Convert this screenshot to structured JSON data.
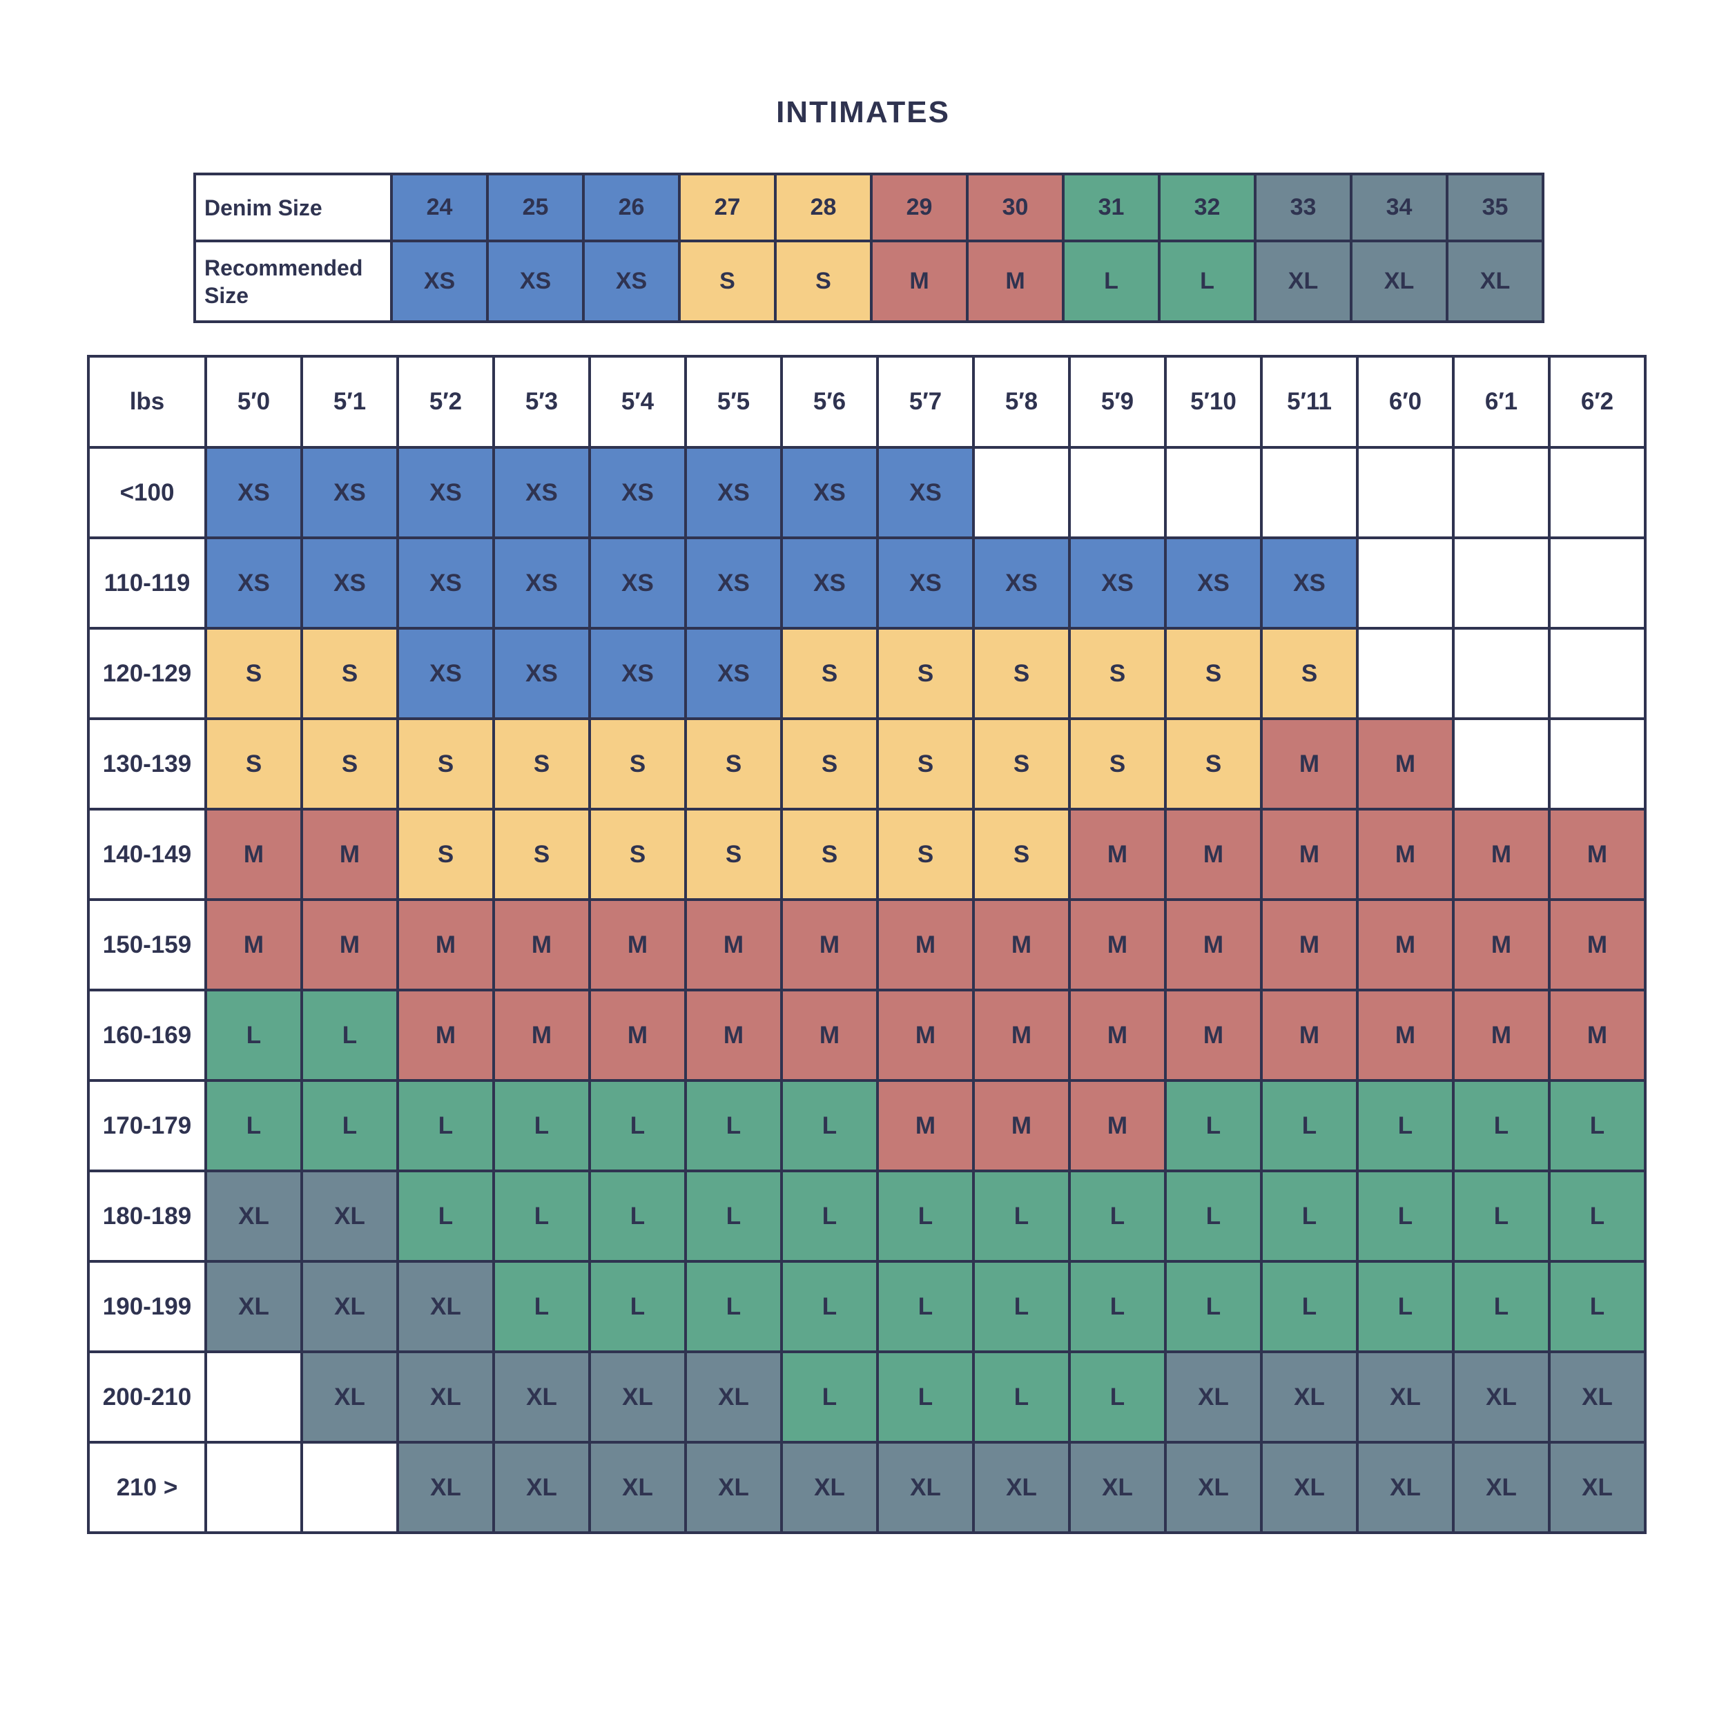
{
  "title": "INTIMATES",
  "colors": {
    "XS": "#5b86c6",
    "S": "#f6cf87",
    "M": "#c57a76",
    "L": "#5fa78c",
    "XL": "#6f8794",
    "empty": "#ffffff",
    "border": "#2f3350",
    "text": "#2f3350"
  },
  "denim_table": {
    "row_labels": [
      "Denim Size",
      "Recommended Size"
    ],
    "sizes": [
      "24",
      "25",
      "26",
      "27",
      "28",
      "29",
      "30",
      "31",
      "32",
      "33",
      "34",
      "35"
    ],
    "recommended": [
      "XS",
      "XS",
      "XS",
      "S",
      "S",
      "M",
      "M",
      "L",
      "L",
      "XL",
      "XL",
      "XL"
    ]
  },
  "chart_data": {
    "type": "table",
    "corner_label": "lbs",
    "columns": [
      "5′0",
      "5′1",
      "5′2",
      "5′3",
      "5′4",
      "5′5",
      "5′6",
      "5′7",
      "5′8",
      "5′9",
      "5′10",
      "5′11",
      "6′0",
      "6′1",
      "6′2"
    ],
    "rows": [
      {
        "label": "<100",
        "cells": [
          "XS",
          "XS",
          "XS",
          "XS",
          "XS",
          "XS",
          "XS",
          "XS",
          "",
          "",
          "",
          "",
          "",
          "",
          ""
        ]
      },
      {
        "label": "110-119",
        "cells": [
          "XS",
          "XS",
          "XS",
          "XS",
          "XS",
          "XS",
          "XS",
          "XS",
          "XS",
          "XS",
          "XS",
          "XS",
          "",
          "",
          ""
        ]
      },
      {
        "label": "120-129",
        "cells": [
          "S",
          "S",
          "XS",
          "XS",
          "XS",
          "XS",
          "S",
          "S",
          "S",
          "S",
          "S",
          "S",
          "",
          "",
          ""
        ]
      },
      {
        "label": "130-139",
        "cells": [
          "S",
          "S",
          "S",
          "S",
          "S",
          "S",
          "S",
          "S",
          "S",
          "S",
          "S",
          "M",
          "M",
          "",
          ""
        ]
      },
      {
        "label": "140-149",
        "cells": [
          "M",
          "M",
          "S",
          "S",
          "S",
          "S",
          "S",
          "S",
          "S",
          "M",
          "M",
          "M",
          "M",
          "M",
          "M"
        ]
      },
      {
        "label": "150-159",
        "cells": [
          "M",
          "M",
          "M",
          "M",
          "M",
          "M",
          "M",
          "M",
          "M",
          "M",
          "M",
          "M",
          "M",
          "M",
          "M"
        ]
      },
      {
        "label": "160-169",
        "cells": [
          "L",
          "L",
          "M",
          "M",
          "M",
          "M",
          "M",
          "M",
          "M",
          "M",
          "M",
          "M",
          "M",
          "M",
          "M"
        ]
      },
      {
        "label": "170-179",
        "cells": [
          "L",
          "L",
          "L",
          "L",
          "L",
          "L",
          "L",
          "M",
          "M",
          "M",
          "L",
          "L",
          "L",
          "L",
          "L"
        ]
      },
      {
        "label": "180-189",
        "cells": [
          "XL",
          "XL",
          "L",
          "L",
          "L",
          "L",
          "L",
          "L",
          "L",
          "L",
          "L",
          "L",
          "L",
          "L",
          "L"
        ]
      },
      {
        "label": "190-199",
        "cells": [
          "XL",
          "XL",
          "XL",
          "L",
          "L",
          "L",
          "L",
          "L",
          "L",
          "L",
          "L",
          "L",
          "L",
          "L",
          "L"
        ]
      },
      {
        "label": "200-210",
        "cells": [
          "",
          "XL",
          "XL",
          "XL",
          "XL",
          "XL",
          "L",
          "L",
          "L",
          "L",
          "XL",
          "XL",
          "XL",
          "XL",
          "XL"
        ]
      },
      {
        "label": "210 >",
        "cells": [
          "",
          "",
          "XL",
          "XL",
          "XL",
          "XL",
          "XL",
          "XL",
          "XL",
          "XL",
          "XL",
          "XL",
          "XL",
          "XL",
          "XL"
        ]
      }
    ]
  }
}
